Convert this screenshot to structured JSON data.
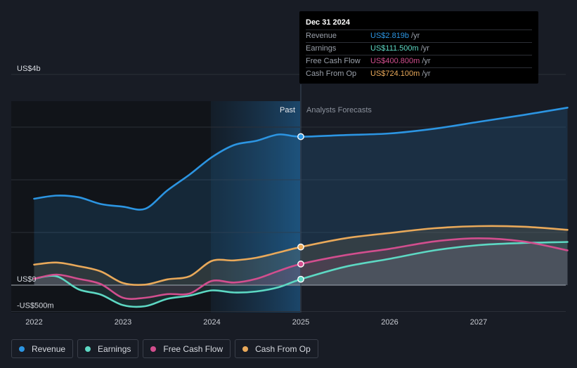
{
  "chart_data": {
    "type": "line",
    "x_ticks": [
      2022,
      2023,
      2024,
      2025,
      2026,
      2027
    ],
    "x_tick_labels": [
      "2022",
      "2023",
      "2024",
      "2025",
      "2026",
      "2027"
    ],
    "xlim": [
      2022.0,
      2028.0
    ],
    "ylim": [
      -500,
      4000
    ],
    "y_labels": [
      {
        "value": 4000,
        "label": "US$4b"
      },
      {
        "value": 0,
        "label": "US$0"
      },
      {
        "value": -500,
        "label": "-US$500m"
      }
    ],
    "y_gridlines": [
      4000,
      3000,
      2000,
      1000,
      0,
      -500
    ],
    "divider_x": 2025.0,
    "past_label": "Past",
    "forecast_label": "Analysts Forecasts",
    "series": [
      {
        "name": "Revenue",
        "key": "revenue",
        "color": "#2c95e2",
        "x": [
          2022.0,
          2022.25,
          2022.5,
          2022.75,
          2023.0,
          2023.25,
          2023.5,
          2023.75,
          2024.0,
          2024.25,
          2024.5,
          2024.75,
          2025.0,
          2025.5,
          2026.0,
          2026.5,
          2027.0,
          2027.5,
          2028.0
        ],
        "values": [
          1640,
          1700,
          1670,
          1540,
          1490,
          1450,
          1800,
          2100,
          2430,
          2660,
          2740,
          2860,
          2819,
          2850,
          2880,
          2970,
          3100,
          3230,
          3370
        ]
      },
      {
        "name": "Earnings",
        "key": "earnings",
        "color": "#5dd8c3",
        "x": [
          2022.0,
          2022.25,
          2022.5,
          2022.75,
          2023.0,
          2023.25,
          2023.5,
          2023.75,
          2024.0,
          2024.25,
          2024.5,
          2024.75,
          2025.0,
          2025.5,
          2026.0,
          2026.5,
          2027.0,
          2027.5,
          2028.0
        ],
        "values": [
          120,
          170,
          -80,
          -180,
          -380,
          -400,
          -260,
          -200,
          -100,
          -140,
          -120,
          -40,
          111.5,
          350,
          500,
          660,
          760,
          800,
          820
        ]
      },
      {
        "name": "Free Cash Flow",
        "key": "fcf",
        "color": "#d24e8e",
        "x": [
          2022.0,
          2022.25,
          2022.5,
          2022.75,
          2023.0,
          2023.25,
          2023.5,
          2023.75,
          2024.0,
          2024.25,
          2024.5,
          2024.75,
          2025.0,
          2025.5,
          2026.0,
          2026.5,
          2027.0,
          2027.5,
          2028.0
        ],
        "values": [
          120,
          200,
          120,
          20,
          -240,
          -240,
          -170,
          -160,
          80,
          50,
          120,
          270,
          400.8,
          570,
          690,
          830,
          890,
          830,
          660
        ]
      },
      {
        "name": "Cash From Op",
        "key": "cfo",
        "color": "#e9a95a",
        "x": [
          2022.0,
          2022.25,
          2022.5,
          2022.75,
          2023.0,
          2023.25,
          2023.5,
          2023.75,
          2024.0,
          2024.25,
          2024.5,
          2024.75,
          2025.0,
          2025.5,
          2026.0,
          2026.5,
          2027.0,
          2027.5,
          2028.0
        ],
        "values": [
          390,
          430,
          360,
          260,
          40,
          10,
          110,
          170,
          460,
          470,
          520,
          620,
          724.1,
          890,
          990,
          1080,
          1120,
          1110,
          1050
        ]
      }
    ]
  },
  "tooltip": {
    "date": "Dec 31 2024",
    "unit": "/yr",
    "rows": [
      {
        "name": "Revenue",
        "value": "US$2.819b",
        "color": "#2c95e2"
      },
      {
        "name": "Earnings",
        "value": "US$111.500m",
        "color": "#5dd8c3"
      },
      {
        "name": "Free Cash Flow",
        "value": "US$400.800m",
        "color": "#d24e8e"
      },
      {
        "name": "Cash From Op",
        "value": "US$724.100m",
        "color": "#e9a95a"
      }
    ]
  },
  "legend": [
    {
      "label": "Revenue",
      "color": "#2c95e2"
    },
    {
      "label": "Earnings",
      "color": "#5dd8c3"
    },
    {
      "label": "Free Cash Flow",
      "color": "#d24e8e"
    },
    {
      "label": "Cash From Op",
      "color": "#e9a95a"
    }
  ]
}
